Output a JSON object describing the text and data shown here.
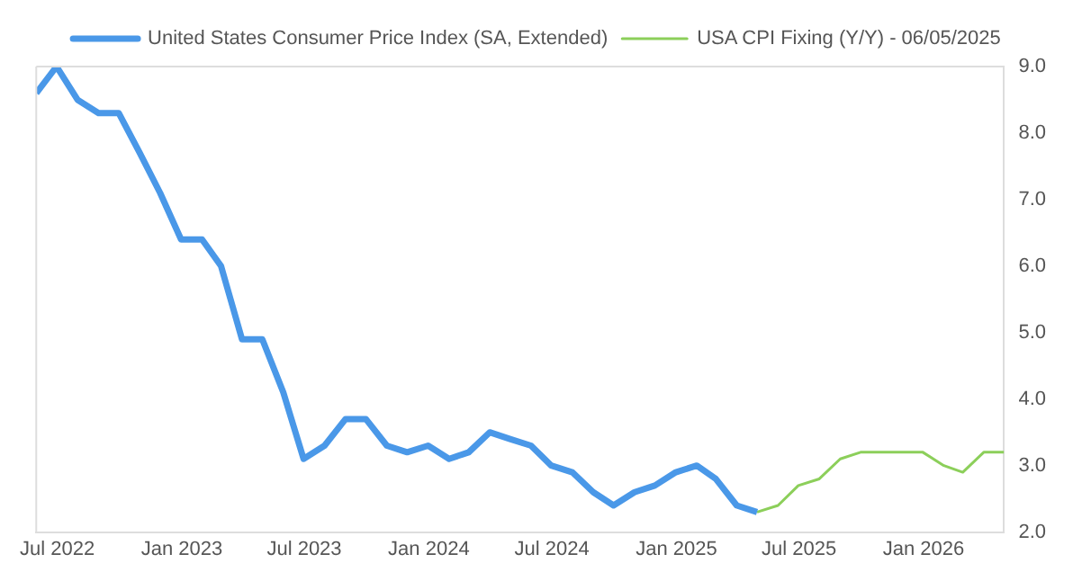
{
  "chart_data": {
    "type": "line",
    "legend": "top",
    "grid": false,
    "marker": "none",
    "line_style": "solid",
    "x": [
      "2022-05-31",
      "2022-06-30",
      "2022-07-31",
      "2022-08-31",
      "2022-09-30",
      "2022-10-31",
      "2022-11-30",
      "2022-12-31",
      "2023-01-31",
      "2023-02-28",
      "2023-03-31",
      "2023-04-30",
      "2023-05-31",
      "2023-06-30",
      "2023-07-31",
      "2023-08-31",
      "2023-09-30",
      "2023-10-31",
      "2023-11-30",
      "2023-12-31",
      "2024-01-31",
      "2024-02-29",
      "2024-03-31",
      "2024-04-30",
      "2024-05-31",
      "2024-06-30",
      "2024-07-31",
      "2024-08-31",
      "2024-09-30",
      "2024-10-31",
      "2024-11-30",
      "2024-12-31",
      "2025-01-31",
      "2025-02-28",
      "2025-03-31",
      "2025-04-30"
    ],
    "series": [
      {
        "name": "United States Consumer Price Index (SA, Extended)",
        "color": "#4a98e8",
        "values": [
          8.6,
          9.0,
          8.5,
          8.3,
          8.3,
          7.7,
          7.1,
          6.4,
          6.4,
          6.0,
          4.9,
          4.9,
          4.1,
          3.1,
          3.3,
          3.7,
          3.7,
          3.3,
          3.2,
          3.3,
          3.1,
          3.2,
          3.5,
          3.4,
          3.3,
          3.0,
          2.9,
          2.6,
          2.4,
          2.6,
          2.7,
          2.9,
          3.0,
          2.8,
          2.4,
          2.3
        ]
      },
      {
        "name": "USA CPI Fixing (Y/Y) - 06/05/2025",
        "color": "#8ccf5a",
        "x": [
          "2025-04-30",
          "2025-05-31",
          "2025-06-30",
          "2025-07-31",
          "2025-08-31",
          "2025-09-30",
          "2025-10-31",
          "2025-11-30",
          "2025-12-31",
          "2026-01-31",
          "2026-02-28",
          "2026-03-31",
          "2026-04-30"
        ],
        "values": [
          2.3,
          2.4,
          2.7,
          2.8,
          3.1,
          3.2,
          3.2,
          3.2,
          3.2,
          3.0,
          2.9,
          3.2,
          3.2
        ]
      }
    ],
    "xlim": [
      "2022-05-31",
      "2026-04-30"
    ],
    "xticks": [
      {
        "value": "2022-07-01",
        "label": "Jul 2022"
      },
      {
        "value": "2023-01-01",
        "label": "Jan 2023"
      },
      {
        "value": "2023-07-01",
        "label": "Jul 2023"
      },
      {
        "value": "2024-01-01",
        "label": "Jan 2024"
      },
      {
        "value": "2024-07-01",
        "label": "Jul 2024"
      },
      {
        "value": "2025-01-01",
        "label": "Jan 2025"
      },
      {
        "value": "2025-07-01",
        "label": "Jul 2025"
      },
      {
        "value": "2026-01-01",
        "label": "Jan 2026"
      }
    ],
    "ylim": [
      2.0,
      9.0
    ],
    "yticks": [
      {
        "value": 2,
        "label": "2.0"
      },
      {
        "value": 3,
        "label": "3.0"
      },
      {
        "value": 4,
        "label": "4.0"
      },
      {
        "value": 5,
        "label": "5.0"
      },
      {
        "value": 6,
        "label": "6.0"
      },
      {
        "value": 7,
        "label": "7.0"
      },
      {
        "value": 8,
        "label": "8.0"
      },
      {
        "value": 9,
        "label": "9.0"
      }
    ]
  }
}
